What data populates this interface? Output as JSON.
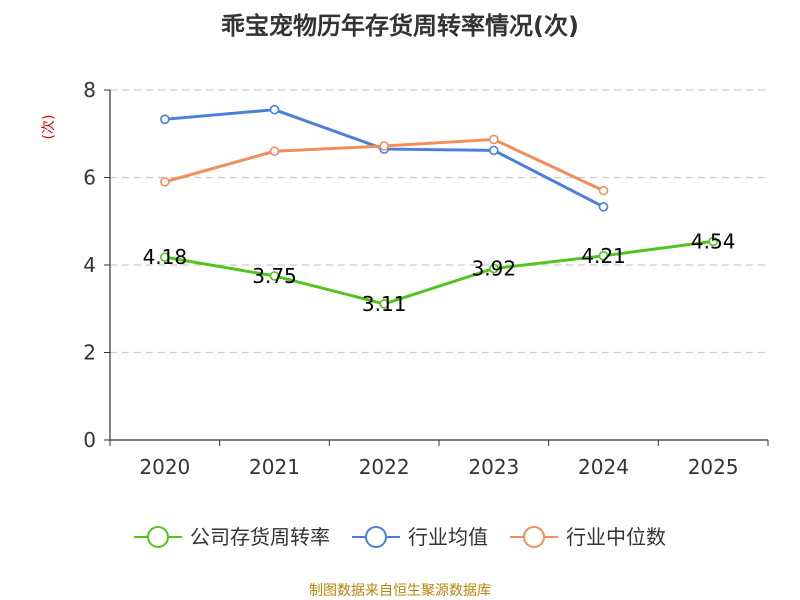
{
  "chart_data": {
    "type": "line",
    "title": "乖宝宠物历年存货周转率情况(次)",
    "ylabel": "(次)",
    "xlabel": "",
    "categories": [
      "2020",
      "2021",
      "2022",
      "2023",
      "2024",
      "2025"
    ],
    "ylim": [
      0,
      8
    ],
    "yticks": [
      "0",
      "2",
      "4",
      "6",
      "8"
    ],
    "grid": true,
    "legend_position": "bottom",
    "series": [
      {
        "name": "公司存货周转率",
        "color": "#52c41a",
        "values": [
          4.18,
          3.75,
          3.11,
          3.92,
          4.21,
          4.54
        ],
        "labels": [
          "4.18",
          "3.75",
          "3.11",
          "3.92",
          "4.21",
          "4.54"
        ]
      },
      {
        "name": "行业均值",
        "color": "#4a7fdb",
        "values": [
          7.33,
          7.55,
          6.65,
          6.62,
          5.33,
          null
        ]
      },
      {
        "name": "行业中位数",
        "color": "#f28e5b",
        "values": [
          5.9,
          6.6,
          6.72,
          6.87,
          5.7,
          null
        ]
      }
    ]
  },
  "source": "制图数据来自恒生聚源数据库"
}
